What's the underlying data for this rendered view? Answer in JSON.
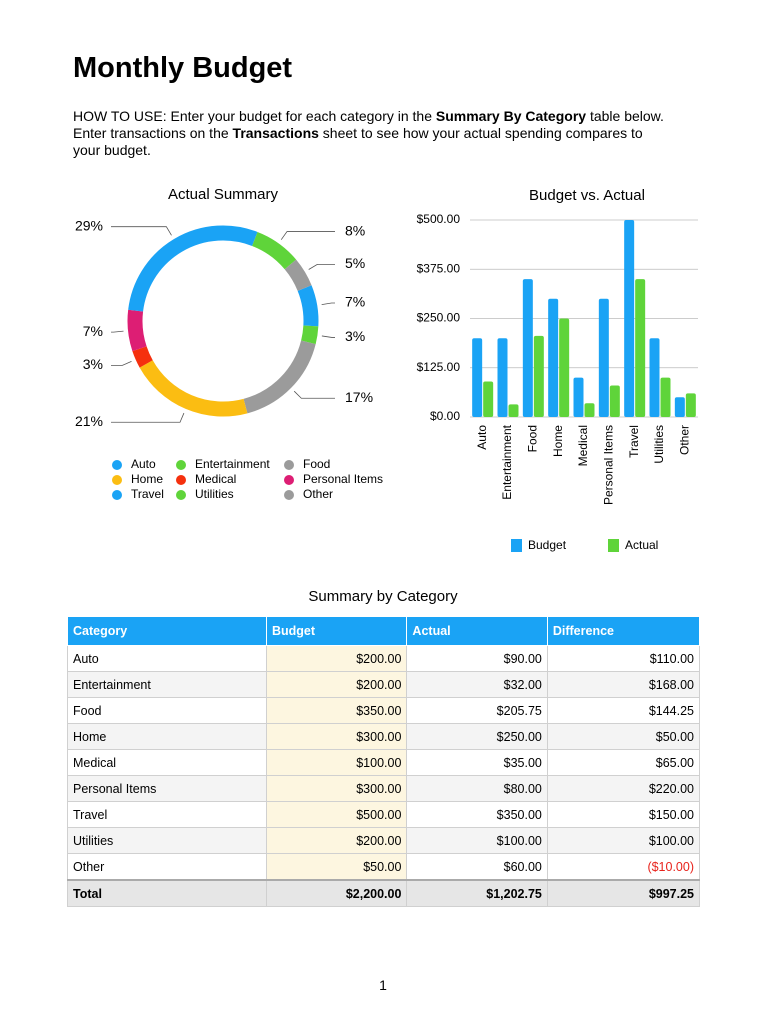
{
  "title": "Monthly Budget",
  "instructions": [
    {
      "text": "HOW TO USE: Enter your budget for each category in the "
    },
    {
      "text": "Summary By Category",
      "bold": true
    },
    {
      "text": " table below. Enter transactions on the "
    },
    {
      "text": "Transactions",
      "bold": true
    },
    {
      "text": " sheet to see how your actual spending compares to your budget."
    }
  ],
  "chart_data": [
    {
      "type": "donut",
      "title": "Actual Summary",
      "categories": [
        "Auto",
        "Entertainment",
        "Food",
        "Home",
        "Medical",
        "Personal Items",
        "Travel",
        "Utilities",
        "Other"
      ],
      "values": [
        7,
        3,
        17,
        21,
        3,
        7,
        29,
        8,
        5
      ],
      "value_labels": [
        "7%",
        "3%",
        "17%",
        "21%",
        "3%",
        "7%",
        "29%",
        "8%",
        "5%"
      ],
      "colors": [
        "#1aa3f5",
        "#5fd43a",
        "#9b9b9b",
        "#fbbd12",
        "#f5300e",
        "#dd1e74",
        "#1aa3f5",
        "#5fd43a",
        "#9b9b9b"
      ]
    },
    {
      "type": "bar",
      "title": "Budget vs. Actual",
      "categories": [
        "Auto",
        "Entertainment",
        "Food",
        "Home",
        "Medical",
        "Personal Items",
        "Travel",
        "Utilities",
        "Other"
      ],
      "series": [
        {
          "name": "Budget",
          "color": "#1aa3f5",
          "values": [
            200,
            200,
            350,
            300,
            100,
            300,
            500,
            200,
            50
          ]
        },
        {
          "name": "Actual",
          "color": "#5fd43a",
          "values": [
            90,
            32,
            205.75,
            250,
            35,
            80,
            350,
            100,
            60
          ]
        }
      ],
      "ylim": [
        0,
        500
      ],
      "yticks": [
        {
          "value": 0,
          "label": "$0.00"
        },
        {
          "value": 125,
          "label": "$125.00"
        },
        {
          "value": 250,
          "label": "$250.00"
        },
        {
          "value": 375,
          "label": "$375.00"
        },
        {
          "value": 500,
          "label": "$500.00"
        }
      ],
      "grid": true
    }
  ],
  "table": {
    "title": "Summary by Category",
    "header": [
      "Category",
      "Budget",
      "Actual",
      "Difference"
    ],
    "rows": [
      [
        "Auto",
        "$200.00",
        "$90.00",
        "$110.00"
      ],
      [
        "Entertainment",
        "$200.00",
        "$32.00",
        "$168.00"
      ],
      [
        "Food",
        "$350.00",
        "$205.75",
        "$144.25"
      ],
      [
        "Home",
        "$300.00",
        "$250.00",
        "$50.00"
      ],
      [
        "Medical",
        "$100.00",
        "$35.00",
        "$65.00"
      ],
      [
        "Personal Items",
        "$300.00",
        "$80.00",
        "$220.00"
      ],
      [
        "Travel",
        "$500.00",
        "$350.00",
        "$150.00"
      ],
      [
        "Utilities",
        "$200.00",
        "$100.00",
        "$100.00"
      ],
      [
        "Other",
        "$50.00",
        "$60.00",
        "($10.00)"
      ]
    ],
    "total": [
      "Total",
      "$2,200.00",
      "$1,202.75",
      "$997.25"
    ]
  },
  "page_number": "1"
}
